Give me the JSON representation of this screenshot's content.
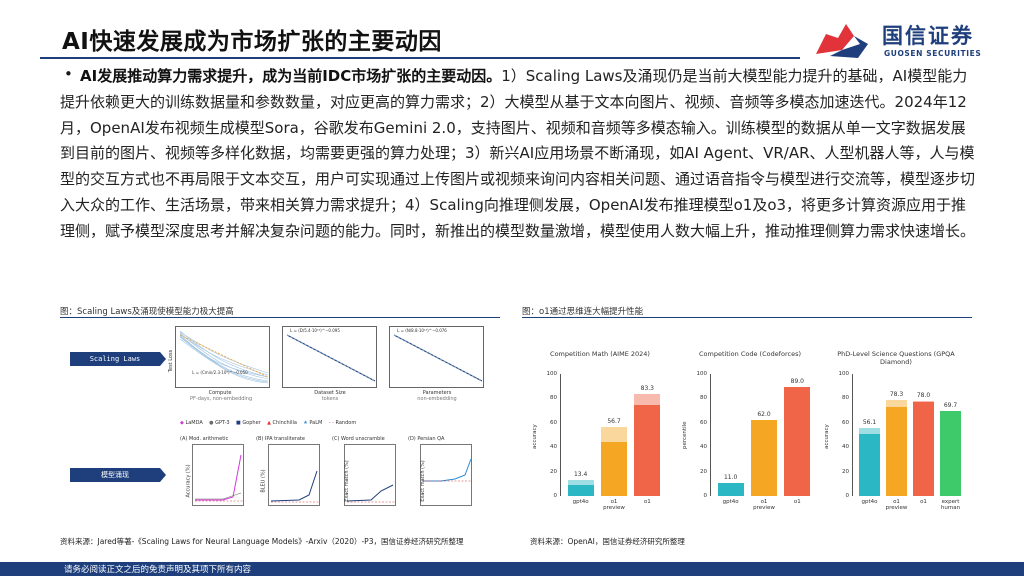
{
  "header": {
    "title": "AI快速发展成为市场扩张的主要动因",
    "logo_cn": "国信证券",
    "logo_en": "GUOSEN SECURITIES"
  },
  "body": {
    "bullet": "•",
    "lead": "AI发展推动算力需求提升，成为当前IDC市场扩张的主要动因。",
    "text": "1）Scaling Laws及涌现仍是当前大模型能力提升的基础，AI模型能力提升依赖更大的训练数据量和参数数量，对应更高的算力需求；2）大模型从基于文本向图片、视频、音频等多模态加速迭代。2024年12月，OpenAI发布视频生成模型Sora，谷歌发布Gemini 2.0，支持图片、视频和音频等多模态输入。训练模型的数据从单一文字数据发展到目前的图片、视频等多样化数据，均需要更强的算力处理；3）新兴AI应用场景不断涌现，如AI Agent、VR/AR、人型机器人等，人与模型的交互方式也不再局限于文本交互，用户可实现通过上传图片或视频来询问内容相关问题、通过语音指令与模型进行交流等，模型逐步切入大众的工作、生活场景，带来相关算力需求提升；4）Scaling向推理侧发展，OpenAI发布推理模型o1及o3，将更多计算资源应用于推理侧，赋予模型深度思考并解决复杂问题的能力。同时，新推出的模型数量激增，模型使用人数大幅上升，推动推理侧算力需求快速增长。"
  },
  "left_figure": {
    "caption": "图：Scaling Laws及涌现使模型能力极大提高",
    "badge_top": "Scaling Laws",
    "badge_bottom": "模型涌现",
    "plots_top": [
      {
        "xlabel": "Compute",
        "sublabel": "PF-days, non-embedding",
        "ylabel": "Test Loss",
        "legend": "L = (Cmin/2.3·10⁸)^−0.050"
      },
      {
        "xlabel": "Dataset Size",
        "sublabel": "tokens",
        "legend": "L = (D/5.4·10¹³)^−0.095"
      },
      {
        "xlabel": "Parameters",
        "sublabel": "non-embedding",
        "legend": "L = (N/8.8·10¹³)^−0.076"
      }
    ],
    "legend_models": [
      "LaMDA",
      "GPT-3",
      "Gopher",
      "Chinchilla",
      "PaLM",
      "Random"
    ],
    "plots_bottom": [
      {
        "title": "(A) Mod. arithmetic",
        "ylabel": "Accuracy (%)"
      },
      {
        "title": "(B) IPA transliterate",
        "ylabel": "BLEU (%)"
      },
      {
        "title": "(C) Word unscramble",
        "ylabel": "Exact match (%)"
      },
      {
        "title": "(D) Persian QA",
        "ylabel": "Exact match (%)"
      }
    ],
    "source": "资料来源：Jared等著-《Scaling Laws for Neural Language Models》-Arxiv（2020）-P3，国信证券经济研究所整理"
  },
  "right_figure": {
    "caption": "图：o1通过思维连大幅提升性能",
    "source": "资料来源：OpenAI，国信证券经济研究所整理"
  },
  "chart_data": [
    {
      "type": "bar",
      "title": "Competition Math (AIME 2024)",
      "ylabel": "accuracy",
      "ylim": [
        0,
        100
      ],
      "yticks": [
        0,
        20,
        40,
        60,
        80,
        100
      ],
      "categories": [
        "gpt4o",
        "o1 preview",
        "o1"
      ],
      "values": [
        13.4,
        56.7,
        83.3
      ],
      "base_values": [
        9.3,
        44.6,
        74.4
      ],
      "colors": [
        "#2bb7c4",
        "#f5a623",
        "#f06548"
      ]
    },
    {
      "type": "bar",
      "title": "Competition Code (Codeforces)",
      "ylabel": "percentile",
      "ylim": [
        0,
        100
      ],
      "yticks": [
        0,
        20,
        40,
        60,
        80,
        100
      ],
      "categories": [
        "gpt4o",
        "o1 preview",
        "o1"
      ],
      "values": [
        11.0,
        62.0,
        89.0
      ],
      "colors": [
        "#2bb7c4",
        "#f5a623",
        "#f06548"
      ]
    },
    {
      "type": "bar",
      "title": "PhD-Level Science Questions (GPQA Diamond)",
      "ylabel": "accuracy",
      "ylim": [
        0,
        100
      ],
      "yticks": [
        0,
        20,
        40,
        60,
        80,
        100
      ],
      "categories": [
        "gpt4o",
        "o1 preview",
        "o1",
        "expert human"
      ],
      "values": [
        56.1,
        78.3,
        78.0,
        69.7
      ],
      "base_values": [
        50.6,
        73.3,
        77.3,
        69.7
      ],
      "colors": [
        "#2bb7c4",
        "#f5a623",
        "#f06548",
        "#3ec96a"
      ]
    }
  ],
  "footer": {
    "text": "请务必阅读正文之后的免责声明及其项下所有内容"
  }
}
